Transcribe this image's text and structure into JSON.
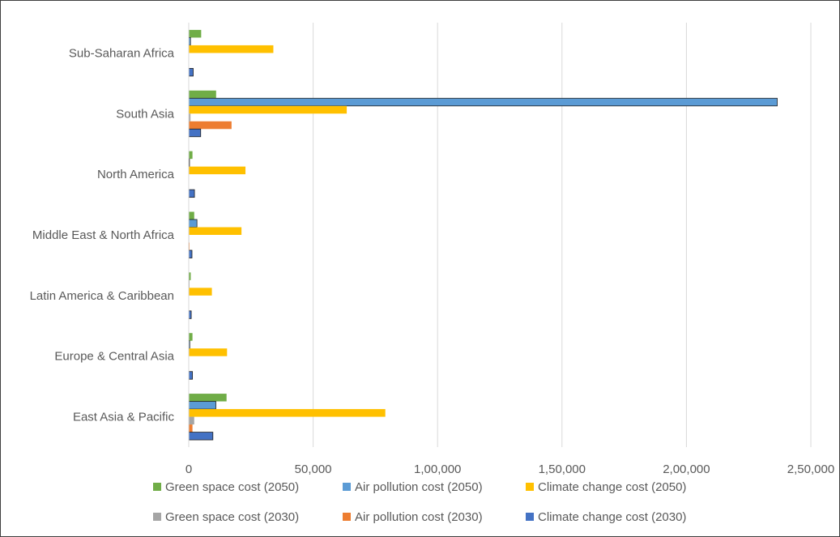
{
  "chart_data": {
    "type": "bar",
    "orientation": "horizontal",
    "title": "",
    "xlabel": "",
    "ylabel": "",
    "xlim": [
      0,
      250000
    ],
    "x_ticks": [
      0,
      50000,
      100000,
      150000,
      200000,
      250000
    ],
    "x_tick_labels": [
      "0",
      "50,000",
      "1,00,000",
      "1,50,000",
      "2,00,000",
      "2,50,000"
    ],
    "grid": "vertical gridlines",
    "legend_position": "bottom",
    "categories": [
      "Sub-Saharan Africa",
      "South Asia",
      "North America",
      "Middle East & North Africa",
      "Latin America & Caribbean",
      "Europe & Central Asia",
      "East Asia & Pacific"
    ],
    "series": [
      {
        "name": "Green space cost (2050)",
        "color": "#70ad47",
        "values": [
          5000,
          11000,
          1500,
          2200,
          800,
          1500,
          15200
        ]
      },
      {
        "name": "Air pollution cost (2050)",
        "color": "#5b9bd5",
        "values": [
          700,
          236500,
          300,
          3300,
          100,
          400,
          10900
        ]
      },
      {
        "name": "Climate change cost (2050)",
        "color": "#ffc000",
        "values": [
          34000,
          63500,
          22800,
          21200,
          9300,
          15400,
          79000
        ]
      },
      {
        "name": "Green space cost (2030)",
        "color": "#a5a5a5",
        "values": [
          100,
          700,
          100,
          200,
          50,
          100,
          2200
        ]
      },
      {
        "name": "Air pollution cost (2030)",
        "color": "#ed7d31",
        "values": [
          100,
          17200,
          50,
          300,
          50,
          100,
          1500
        ]
      },
      {
        "name": "Climate change cost  (2030)",
        "color": "#4472c4",
        "values": [
          1800,
          4800,
          2300,
          1300,
          1000,
          1500,
          9700
        ]
      }
    ]
  }
}
